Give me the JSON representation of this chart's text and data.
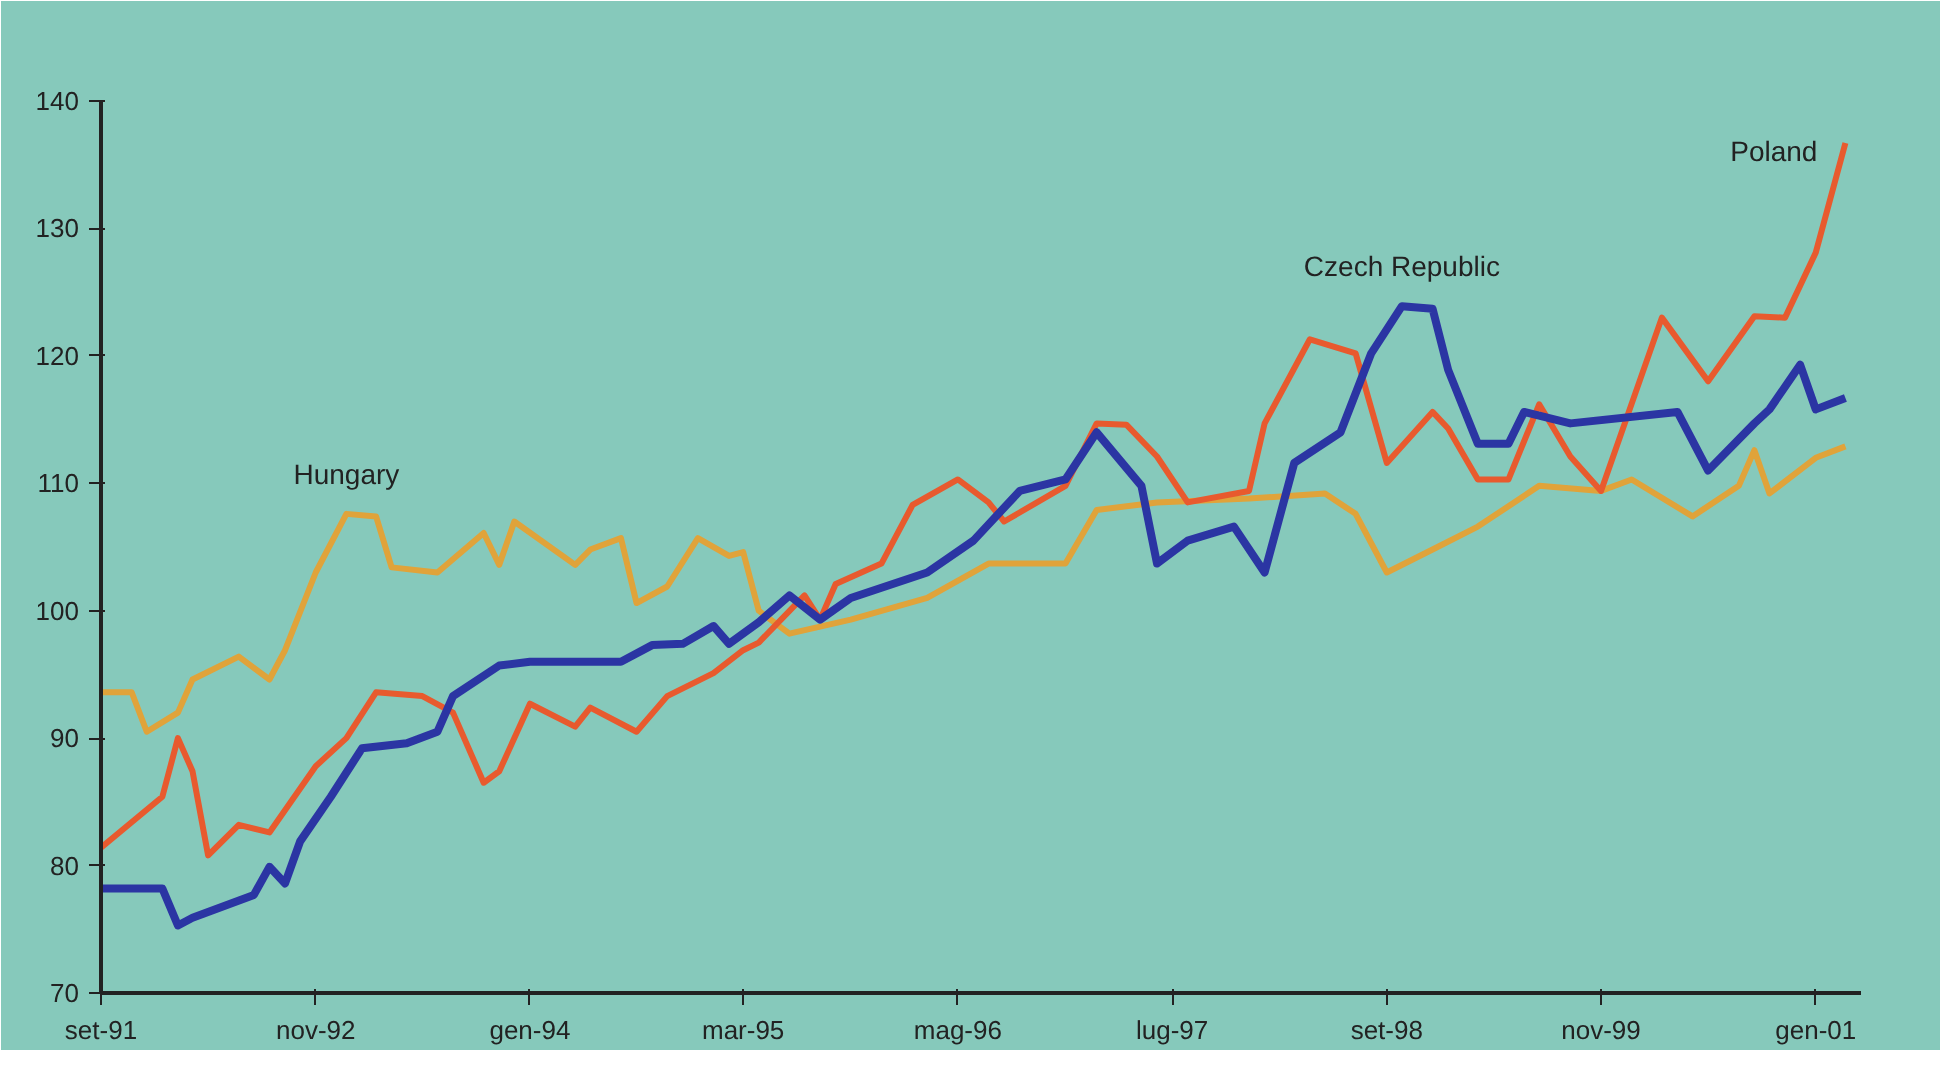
{
  "chart_data": {
    "type": "line",
    "xlim": [
      "1991-09",
      "2001-04"
    ],
    "ylim": [
      70,
      140
    ],
    "xticks": [
      {
        "value": "1991-09",
        "label": "set-91"
      },
      {
        "value": "1992-11",
        "label": "nov-92"
      },
      {
        "value": "1994-01",
        "label": "gen-94"
      },
      {
        "value": "1995-03",
        "label": "mar-95"
      },
      {
        "value": "1996-05",
        "label": "mag-96"
      },
      {
        "value": "1997-07",
        "label": "lug-97"
      },
      {
        "value": "1998-09",
        "label": "set-98"
      },
      {
        "value": "1999-11",
        "label": "nov-99"
      },
      {
        "value": "2001-01",
        "label": "gen-01"
      }
    ],
    "yticks": [
      70,
      80,
      90,
      100,
      110,
      120,
      130,
      140
    ],
    "grid": false,
    "marker": "none",
    "line_style": "solid",
    "series": [
      {
        "name": "Hungary",
        "color": "#e0a33a",
        "x": [
          "1991-09",
          "1991-11",
          "1991-12",
          "1992-02",
          "1992-03",
          "1992-06",
          "1992-08",
          "1992-09",
          "1992-11",
          "1993-01",
          "1993-03",
          "1993-04",
          "1993-07",
          "1993-10",
          "1993-11",
          "1993-12",
          "1994-04",
          "1994-05",
          "1994-07",
          "1994-08",
          "1994-10",
          "1994-12",
          "1995-02",
          "1995-03",
          "1995-04",
          "1995-06",
          "1995-10",
          "1996-03",
          "1996-07",
          "1996-12",
          "1997-02",
          "1997-06",
          "1997-12",
          "1998-05",
          "1998-07",
          "1998-09",
          "1998-12",
          "1999-03",
          "1999-07",
          "1999-11",
          "2000-01",
          "2000-05",
          "2000-08",
          "2000-09",
          "2000-10",
          "2001-01",
          "2001-03"
        ],
        "values": [
          93.6,
          93.6,
          90.5,
          92.0,
          94.6,
          96.4,
          94.6,
          96.9,
          103.0,
          107.6,
          107.4,
          103.4,
          103.0,
          106.1,
          103.6,
          107.0,
          103.6,
          104.8,
          105.7,
          100.6,
          101.9,
          105.7,
          104.3,
          104.6,
          100.0,
          98.2,
          99.3,
          101.0,
          103.7,
          103.7,
          107.9,
          108.5,
          108.8,
          109.2,
          107.6,
          103.0,
          104.8,
          106.6,
          109.8,
          109.4,
          110.3,
          107.4,
          109.8,
          112.6,
          109.2,
          112.0,
          112.9
        ]
      },
      {
        "name": "Poland",
        "color": "#e85a2e",
        "x": [
          "1991-09",
          "1992-01",
          "1992-02",
          "1992-03",
          "1992-04",
          "1992-06",
          "1992-08",
          "1992-11",
          "1993-01",
          "1993-03",
          "1993-06",
          "1993-08",
          "1993-10",
          "1993-11",
          "1994-01",
          "1994-04",
          "1994-05",
          "1994-08",
          "1994-10",
          "1995-01",
          "1995-03",
          "1995-04",
          "1995-07",
          "1995-08",
          "1995-09",
          "1995-12",
          "1996-02",
          "1996-05",
          "1996-07",
          "1996-08",
          "1996-12",
          "1997-02",
          "1997-04",
          "1997-06",
          "1997-08",
          "1997-12",
          "1998-01",
          "1998-04",
          "1998-07",
          "1998-09",
          "1998-12",
          "1999-01",
          "1999-03",
          "1999-05",
          "1999-07",
          "1999-09",
          "1999-11",
          "2000-03",
          "2000-06",
          "2000-09",
          "2000-11",
          "2001-01",
          "2001-03"
        ],
        "values": [
          81.4,
          85.4,
          90.0,
          87.4,
          80.8,
          83.2,
          82.6,
          87.8,
          90.0,
          93.6,
          93.3,
          92.0,
          86.5,
          87.4,
          92.7,
          90.9,
          92.4,
          90.5,
          93.3,
          95.1,
          96.9,
          97.5,
          101.2,
          99.3,
          102.1,
          103.7,
          108.3,
          110.3,
          108.5,
          107.0,
          109.8,
          114.7,
          114.6,
          112.1,
          108.5,
          109.4,
          114.7,
          121.3,
          120.2,
          111.6,
          115.6,
          114.3,
          110.3,
          110.3,
          116.2,
          112.1,
          109.4,
          123.0,
          118.0,
          123.1,
          123.0,
          128.1,
          136.7
        ]
      },
      {
        "name": "Czech Republic",
        "color": "#2b35a3",
        "x": [
          "1991-09",
          "1992-01",
          "1992-02",
          "1992-03",
          "1992-07",
          "1992-08",
          "1992-09",
          "1992-10",
          "1992-12",
          "1993-02",
          "1993-05",
          "1993-07",
          "1993-08",
          "1993-11",
          "1994-01",
          "1994-07",
          "1994-09",
          "1994-11",
          "1995-01",
          "1995-02",
          "1995-04",
          "1995-06",
          "1995-08",
          "1995-10",
          "1996-03",
          "1996-06",
          "1996-09",
          "1996-12",
          "1997-02",
          "1997-05",
          "1997-06",
          "1997-08",
          "1997-11",
          "1998-01",
          "1998-03",
          "1998-06",
          "1998-08",
          "1998-10",
          "1998-12",
          "1999-01",
          "1999-03",
          "1999-05",
          "1999-06",
          "1999-09",
          "2000-04",
          "2000-06",
          "2000-09",
          "2000-10",
          "2000-12",
          "2001-01",
          "2001-03"
        ],
        "values": [
          78.2,
          78.2,
          75.3,
          75.9,
          77.7,
          79.9,
          78.6,
          81.9,
          85.4,
          89.2,
          89.6,
          90.5,
          93.3,
          95.7,
          96.0,
          96.0,
          97.3,
          97.4,
          98.8,
          97.4,
          99.1,
          101.2,
          99.3,
          101.0,
          103.0,
          105.5,
          109.4,
          110.3,
          114.0,
          109.8,
          103.7,
          105.5,
          106.6,
          103.0,
          111.6,
          114.0,
          120.2,
          123.9,
          123.7,
          118.9,
          113.1,
          113.1,
          115.6,
          114.7,
          115.6,
          111.0,
          114.7,
          115.8,
          119.3,
          115.8,
          116.7
        ]
      }
    ]
  }
}
